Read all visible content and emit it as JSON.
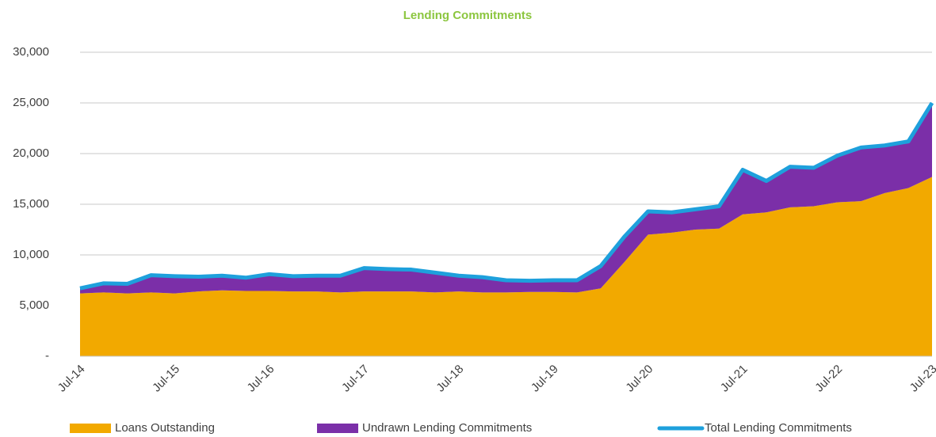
{
  "chart_data": {
    "type": "stacked_area",
    "title": "Lending Commitments",
    "categories": [
      "Jul-14",
      null,
      null,
      null,
      "Jul-15",
      null,
      null,
      null,
      "Jul-16",
      null,
      null,
      null,
      "Jul-17",
      null,
      null,
      null,
      "Jul-18",
      null,
      null,
      null,
      "Jul-19",
      null,
      null,
      null,
      "Jul-20",
      null,
      null,
      null,
      "Jul-21",
      null,
      null,
      null,
      "Jul-22",
      null,
      null,
      null,
      "Jul-23"
    ],
    "series": [
      {
        "name": "Loans Outstanding",
        "color": "#f2a900",
        "values": [
          6200,
          6300,
          6200,
          6300,
          6200,
          6400,
          6500,
          6450,
          6450,
          6400,
          6400,
          6300,
          6400,
          6400,
          6400,
          6300,
          6400,
          6300,
          6300,
          6350,
          6350,
          6300,
          6700,
          9300,
          12000,
          12200,
          12500,
          12600,
          14000,
          14200,
          14700,
          14800,
          15200,
          15300,
          16100,
          16600,
          17700
        ]
      },
      {
        "name": "Undrawn Lending Commitments",
        "color": "#7b2fa8",
        "values": [
          500,
          900,
          950,
          1700,
          1700,
          1450,
          1450,
          1300,
          1650,
          1500,
          1550,
          1650,
          2300,
          2200,
          2150,
          1950,
          1550,
          1500,
          1200,
          1100,
          1150,
          1200,
          2200,
          2500,
          2300,
          2000,
          2000,
          2200,
          4400,
          3100,
          4000,
          3800,
          4600,
          5300,
          4700,
          4600,
          7300
        ]
      },
      {
        "name": "Total Lending Commitments",
        "color": "#1ea0dc",
        "type": "line",
        "values": [
          6700,
          7200,
          7150,
          8000,
          7900,
          7850,
          7950,
          7750,
          8100,
          7900,
          7950,
          7950,
          8700,
          8600,
          8550,
          8250,
          7950,
          7800,
          7500,
          7450,
          7500,
          7500,
          8900,
          11800,
          14300,
          14200,
          14500,
          14800,
          18400,
          17300,
          18700,
          18600,
          19800,
          20600,
          20800,
          21200,
          25000
        ]
      }
    ],
    "ylim": [
      0,
      30000
    ],
    "yticks": [
      {
        "value": 0,
        "label": "-"
      },
      {
        "value": 5000,
        "label": "5,000"
      },
      {
        "value": 10000,
        "label": "10,000"
      },
      {
        "value": 15000,
        "label": "15,000"
      },
      {
        "value": 20000,
        "label": "20,000"
      },
      {
        "value": 25000,
        "label": "25,000"
      },
      {
        "value": 30000,
        "label": "30,000"
      }
    ],
    "grid": true,
    "legend": "bottom"
  }
}
